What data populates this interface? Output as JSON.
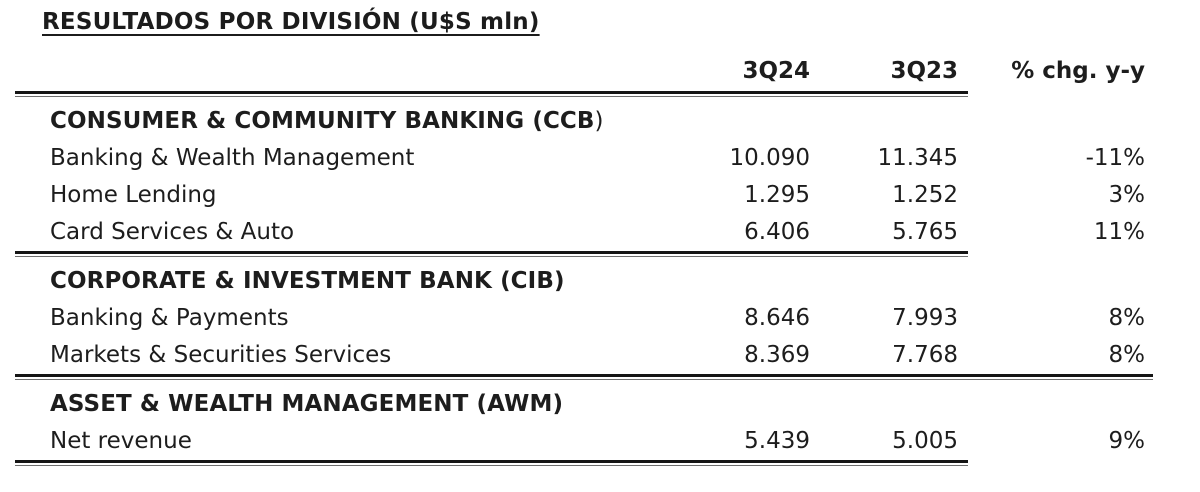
{
  "title": "RESULTADOS POR DIVISIÓN (U$S mln)",
  "columns": [
    "",
    "3Q24",
    "3Q23",
    "% chg. y-y"
  ],
  "sections": [
    {
      "header": "CONSUMER & COMMUNITY BANKING (CCB",
      "header_suffix": ")",
      "rows": [
        {
          "label": "Banking & Wealth Management",
          "q24": "10.090",
          "q23": "11.345",
          "chg": "-11%"
        },
        {
          "label": "Home Lending",
          "q24": "1.295",
          "q23": "1.252",
          "chg": "3%"
        },
        {
          "label": "Card Services & Auto",
          "q24": "6.406",
          "q23": "5.765",
          "chg": "11%"
        }
      ]
    },
    {
      "header": "CORPORATE & INVESTMENT BANK (CIB)",
      "header_suffix": "",
      "rows": [
        {
          "label": "Banking & Payments",
          "q24": "8.646",
          "q23": "7.993",
          "chg": "8%"
        },
        {
          "label": "Markets & Securities Services",
          "q24": "8.369",
          "q23": "7.768",
          "chg": "8%"
        }
      ]
    },
    {
      "header": "ASSET & WEALTH MANAGEMENT (AWM)",
      "header_suffix": "",
      "rows": [
        {
          "label": "Net revenue",
          "q24": "5.439",
          "q23": "5.005",
          "chg": "9%"
        }
      ]
    }
  ]
}
